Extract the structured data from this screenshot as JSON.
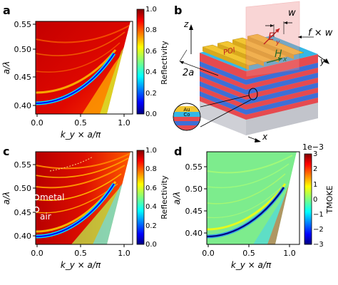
{
  "panels": {
    "a": {
      "label": "a"
    },
    "b": {
      "label": "b"
    },
    "c": {
      "label": "c"
    },
    "d": {
      "label": "d"
    }
  },
  "colors": {
    "gold": "#f2c531",
    "cobalt": "#35b7e6",
    "red_layer": "#e64a4f",
    "blue_layer": "#3d6fd6",
    "substrate_top": "#cfd0d6",
    "poi_plane": "#f08a8a"
  },
  "schematic": {
    "w_label": "w",
    "fw_label": "f × w",
    "twoa_label": "2a",
    "x_label": "x",
    "y_label": "y",
    "z_label": "z",
    "poi_label": "POI",
    "E_label": "E",
    "E_sub": "y",
    "H_label": "H",
    "H_sub": "x",
    "inset_au": "Au",
    "inset_co": "Co"
  },
  "annotations": {
    "metal": "metal",
    "air": "air"
  },
  "chart_data": [
    {
      "panel": "a",
      "type": "heatmap",
      "xlabel": "k_y × a/π",
      "ylabel": "a/λ",
      "xlim": [
        0.0,
        1.15
      ],
      "ylim": [
        0.37,
        0.575
      ],
      "xticks": [
        "0.0",
        "0.5",
        "1.0"
      ],
      "yticks": [
        "0.40",
        "0.45",
        "0.50",
        "0.55"
      ],
      "colorbar": {
        "label": "Reflectivity",
        "range": [
          0.0,
          1.0
        ],
        "ticks": [
          "0.0",
          "0.2",
          "0.4",
          "0.6",
          "0.8",
          "1.0"
        ],
        "colormap": "jet"
      }
    },
    {
      "panel": "c",
      "type": "heatmap",
      "xlabel": "k_y × a/π",
      "ylabel": "a/λ",
      "xlim": [
        0.0,
        1.15
      ],
      "ylim": [
        0.37,
        0.575
      ],
      "xticks": [
        "0.0",
        "0.5",
        "1.0"
      ],
      "yticks": [
        "0.40",
        "0.45",
        "0.50",
        "0.55"
      ],
      "colorbar": {
        "label": "Reflectivity",
        "range": [
          0.0,
          1.0
        ],
        "ticks": [
          "0.0",
          "0.2",
          "0.4",
          "0.6",
          "0.8",
          "1.0"
        ],
        "colormap": "jet"
      }
    },
    {
      "panel": "d",
      "type": "heatmap",
      "xlabel": "k_y × a/π",
      "ylabel": "a/λ",
      "xlim": [
        0.0,
        1.15
      ],
      "ylim": [
        0.37,
        0.575
      ],
      "xticks": [
        "0.0",
        "0.5",
        "1.0"
      ],
      "yticks": [
        "0.40",
        "0.45",
        "0.50",
        "0.55"
      ],
      "colorbar": {
        "label": "TMOKE",
        "range": [
          -3,
          3
        ],
        "ticks": [
          "−3",
          "−2",
          "−1",
          "0",
          "1",
          "2",
          "3"
        ],
        "multiplier": "1e−3",
        "colormap": "jet"
      }
    }
  ]
}
